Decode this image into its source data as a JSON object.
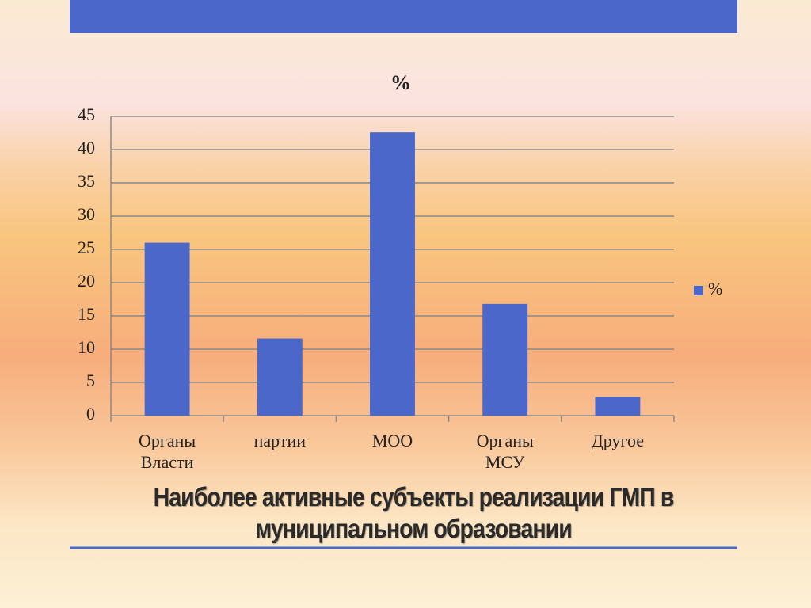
{
  "chart_data": {
    "type": "bar",
    "title": "%",
    "categories": [
      "Органы Власти",
      "партии",
      "МОО",
      "Органы МСУ",
      "Другое"
    ],
    "series": [
      {
        "name": "%",
        "color": "#4a67c9",
        "values": [
          26,
          11.6,
          42.6,
          16.8,
          2.8
        ]
      }
    ],
    "ylim": [
      0,
      45
    ],
    "yticks": [
      0,
      5,
      10,
      15,
      20,
      25,
      30,
      35,
      40,
      45
    ],
    "grid": true,
    "legend": "right"
  },
  "caption": "Наиболее активные субъекты реализации ГМП в муниципальном образовании"
}
